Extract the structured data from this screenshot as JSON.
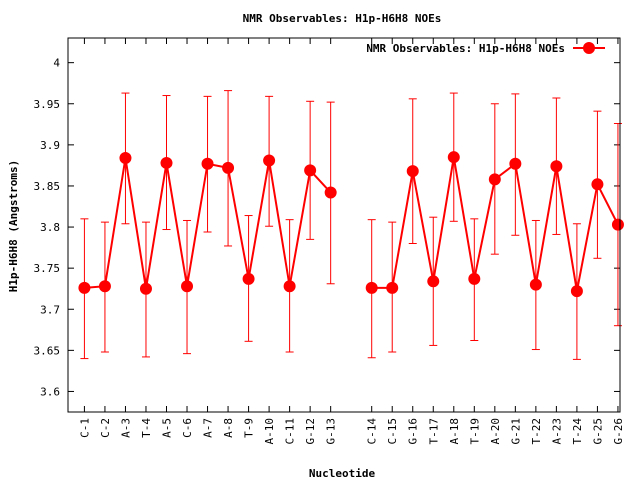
{
  "chart_data": {
    "type": "line",
    "title": "NMR Observables: H1p-H6H8 NOEs",
    "xlabel": "Nucleotide",
    "ylabel": "H1p-H6H8 (Angstroms)",
    "ylim": [
      3.575,
      4.03
    ],
    "yticks": [
      3.6,
      3.65,
      3.7,
      3.75,
      3.8,
      3.85,
      3.9,
      3.95,
      4
    ],
    "ytick_labels": [
      "3.6",
      "3.65",
      "3.7",
      "3.75",
      "3.8",
      "3.85",
      "3.9",
      "3.95",
      "4"
    ],
    "categories": [
      "C-1",
      "C-2",
      "A-3",
      "T-4",
      "A-5",
      "C-6",
      "A-7",
      "A-8",
      "T-9",
      "A-10",
      "C-11",
      "G-12",
      "G-13",
      "C-14",
      "C-15",
      "G-16",
      "T-17",
      "A-18",
      "T-19",
      "A-20",
      "G-21",
      "T-22",
      "A-23",
      "T-24",
      "G-25",
      "G-26"
    ],
    "legend": {
      "position": "top-right"
    },
    "series": [
      {
        "name": "NMR Observables: H1p-H6H8 NOEs",
        "color": "#ff0000",
        "x": [
          1,
          2,
          3,
          4,
          5,
          6,
          7,
          8,
          9,
          10,
          11,
          12,
          13,
          15,
          16,
          17,
          18,
          19,
          20,
          21,
          22,
          23,
          24,
          25,
          26,
          27
        ],
        "segments": [
          [
            0,
            12
          ],
          [
            13,
            25
          ]
        ],
        "values": [
          3.726,
          3.728,
          3.884,
          3.725,
          3.878,
          3.728,
          3.877,
          3.872,
          3.737,
          3.881,
          3.728,
          3.869,
          3.842,
          3.726,
          3.726,
          3.868,
          3.734,
          3.885,
          3.737,
          3.858,
          3.877,
          3.73,
          3.874,
          3.722,
          3.852,
          3.803
        ],
        "err_low": [
          3.64,
          3.648,
          3.804,
          3.642,
          3.797,
          3.646,
          3.794,
          3.777,
          3.661,
          3.801,
          3.648,
          3.785,
          3.731,
          3.641,
          3.648,
          3.78,
          3.656,
          3.807,
          3.662,
          3.767,
          3.79,
          3.651,
          3.791,
          3.639,
          3.762,
          3.68
        ],
        "err_high": [
          3.81,
          3.806,
          3.963,
          3.806,
          3.96,
          3.808,
          3.959,
          3.966,
          3.814,
          3.959,
          3.809,
          3.953,
          3.952,
          3.809,
          3.806,
          3.956,
          3.812,
          3.963,
          3.81,
          3.95,
          3.962,
          3.808,
          3.957,
          3.804,
          3.941,
          3.926
        ]
      }
    ]
  }
}
